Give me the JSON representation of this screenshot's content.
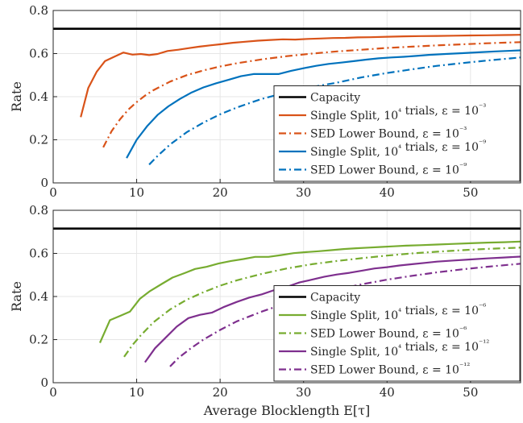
{
  "chart_data": [
    {
      "type": "line",
      "title": "",
      "xlabel": "",
      "ylabel": "Rate",
      "xlim": [
        0,
        56
      ],
      "ylim": [
        0,
        0.8
      ],
      "xticks": [
        "0",
        "10",
        "20",
        "30",
        "40",
        "50"
      ],
      "yticks": [
        "0",
        "0.2",
        "0.4",
        "0.6",
        "0.8"
      ],
      "grid": true,
      "legend_position": "lower-right",
      "series": [
        {
          "name": "Capacity",
          "color": "#000000",
          "style": "solid",
          "x": [
            0,
            56
          ],
          "y": [
            0.715,
            0.715
          ]
        },
        {
          "name": "Single Split, 10⁴ trials, ε = 10⁻³",
          "color": "#d95319",
          "style": "solid",
          "x": [
            3.3,
            4.2,
            5.2,
            6.2,
            7.3,
            8.4,
            9.5,
            10.5,
            11.5,
            12.5,
            13.7,
            15,
            16.2,
            17.5,
            18.8,
            20,
            21.5,
            23,
            24.5,
            26,
            27.5,
            29,
            30.5,
            32,
            33.5,
            35,
            36.5,
            38,
            40,
            42,
            44,
            46,
            48,
            50,
            52,
            54,
            56
          ],
          "y": [
            0.305,
            0.44,
            0.515,
            0.565,
            0.585,
            0.605,
            0.595,
            0.598,
            0.593,
            0.598,
            0.612,
            0.618,
            0.625,
            0.632,
            0.638,
            0.643,
            0.65,
            0.655,
            0.66,
            0.663,
            0.666,
            0.665,
            0.668,
            0.67,
            0.672,
            0.673,
            0.675,
            0.676,
            0.678,
            0.68,
            0.681,
            0.682,
            0.683,
            0.684,
            0.685,
            0.686,
            0.687
          ]
        },
        {
          "name": "SED Lower Bound, ε = 10⁻³",
          "color": "#d95319",
          "style": "dashdot",
          "x": [
            6,
            7,
            8,
            9,
            10,
            11,
            12,
            14,
            16,
            18,
            20,
            22,
            25,
            28,
            31,
            34,
            37,
            40,
            43,
            46,
            49,
            52,
            56
          ],
          "y": [
            0.165,
            0.24,
            0.295,
            0.34,
            0.375,
            0.405,
            0.43,
            0.47,
            0.5,
            0.522,
            0.54,
            0.555,
            0.573,
            0.588,
            0.6,
            0.61,
            0.618,
            0.626,
            0.632,
            0.638,
            0.643,
            0.648,
            0.653
          ]
        },
        {
          "name": "Single Split, 10⁴ trials, ε = 10⁻⁹",
          "color": "#0072bd",
          "style": "solid",
          "x": [
            8.8,
            10,
            11.3,
            12.5,
            13.8,
            15.2,
            16.6,
            18,
            19.5,
            21,
            22.5,
            24,
            25.5,
            27,
            28.5,
            30,
            31.5,
            33,
            34.5,
            36,
            37.5,
            39,
            40.5,
            42,
            43.5,
            45,
            47,
            49,
            51,
            53,
            56
          ],
          "y": [
            0.115,
            0.2,
            0.265,
            0.315,
            0.355,
            0.39,
            0.42,
            0.443,
            0.462,
            0.478,
            0.495,
            0.505,
            0.505,
            0.505,
            0.52,
            0.532,
            0.543,
            0.552,
            0.558,
            0.565,
            0.572,
            0.578,
            0.582,
            0.585,
            0.589,
            0.594,
            0.598,
            0.602,
            0.606,
            0.61,
            0.615
          ]
        },
        {
          "name": "SED Lower Bound, ε = 10⁻⁹",
          "color": "#0072bd",
          "style": "dashdot",
          "x": [
            11.5,
            12.5,
            14,
            16,
            18,
            20,
            22,
            25,
            28,
            31,
            34,
            37,
            40,
            43,
            46,
            49,
            52,
            56
          ],
          "y": [
            0.085,
            0.125,
            0.178,
            0.235,
            0.28,
            0.318,
            0.35,
            0.39,
            0.42,
            0.445,
            0.465,
            0.49,
            0.51,
            0.527,
            0.543,
            0.556,
            0.568,
            0.582
          ]
        }
      ],
      "legend": [
        "Capacity",
        "Single Split, 10⁴ trials, ε = 10⁻³",
        "SED Lower Bound, ε = 10⁻³",
        "Single Split, 10⁴ trials, ε = 10⁻⁹",
        "SED Lower Bound, ε = 10⁻⁹"
      ]
    },
    {
      "type": "line",
      "title": "",
      "xlabel": "Average Blocklength E[τ]",
      "ylabel": "Rate",
      "xlim": [
        0,
        56
      ],
      "ylim": [
        0,
        0.8
      ],
      "xticks": [
        "0",
        "10",
        "20",
        "30",
        "40",
        "50"
      ],
      "yticks": [
        "0",
        "0.2",
        "0.4",
        "0.6",
        "0.8"
      ],
      "grid": true,
      "legend_position": "lower-right",
      "series": [
        {
          "name": "Capacity",
          "color": "#000000",
          "style": "solid",
          "x": [
            0,
            56
          ],
          "y": [
            0.715,
            0.715
          ]
        },
        {
          "name": "Single Split, 10⁴ trials, ε = 10⁻⁶",
          "color": "#77ac30",
          "style": "solid",
          "x": [
            5.6,
            6.8,
            8,
            9.2,
            10.4,
            11.6,
            13,
            14.3,
            15.7,
            17,
            18.4,
            19.8,
            21.3,
            22.8,
            24.2,
            25.8,
            27.3,
            28.8,
            30.3,
            31.8,
            33.3,
            34.8,
            36.3,
            37.8,
            39.3,
            40.8,
            42.3,
            44,
            46,
            48,
            50,
            52,
            54,
            56
          ],
          "y": [
            0.185,
            0.29,
            0.31,
            0.33,
            0.39,
            0.425,
            0.458,
            0.488,
            0.508,
            0.528,
            0.538,
            0.553,
            0.565,
            0.574,
            0.584,
            0.584,
            0.592,
            0.601,
            0.606,
            0.61,
            0.615,
            0.62,
            0.624,
            0.627,
            0.63,
            0.633,
            0.636,
            0.638,
            0.641,
            0.644,
            0.647,
            0.65,
            0.652,
            0.655
          ]
        },
        {
          "name": "SED Lower Bound, ε = 10⁻⁶",
          "color": "#77ac30",
          "style": "dashdot",
          "x": [
            8.5,
            9.5,
            10.5,
            12,
            14,
            16,
            18,
            20,
            22,
            25,
            28,
            31,
            34,
            37,
            40,
            43,
            46,
            49,
            52,
            56
          ],
          "y": [
            0.12,
            0.175,
            0.22,
            0.28,
            0.34,
            0.385,
            0.42,
            0.45,
            0.475,
            0.505,
            0.53,
            0.55,
            0.565,
            0.578,
            0.59,
            0.6,
            0.608,
            0.615,
            0.621,
            0.627
          ]
        },
        {
          "name": "Single Split, 10⁴ trials, ε = 10⁻¹²",
          "color": "#7e2f8e",
          "style": "solid",
          "x": [
            11,
            12.2,
            13.5,
            14.8,
            16.2,
            17.6,
            19,
            20.5,
            22,
            23.5,
            25,
            26.5,
            28,
            29.5,
            31,
            32.5,
            34,
            35.5,
            37,
            38.5,
            40,
            41.5,
            43,
            44.5,
            46,
            48,
            50,
            52,
            54,
            56
          ],
          "y": [
            0.095,
            0.16,
            0.21,
            0.26,
            0.3,
            0.315,
            0.325,
            0.352,
            0.375,
            0.395,
            0.41,
            0.43,
            0.445,
            0.465,
            0.478,
            0.492,
            0.502,
            0.51,
            0.52,
            0.53,
            0.536,
            0.544,
            0.55,
            0.556,
            0.562,
            0.567,
            0.572,
            0.577,
            0.581,
            0.585
          ]
        },
        {
          "name": "SED Lower Bound, ε = 10⁻¹²",
          "color": "#7e2f8e",
          "style": "dashdot",
          "x": [
            14,
            15,
            16.5,
            18,
            20,
            22,
            25,
            28,
            31,
            34,
            37,
            40,
            43,
            46,
            49,
            52,
            56
          ],
          "y": [
            0.075,
            0.115,
            0.16,
            0.2,
            0.245,
            0.285,
            0.33,
            0.37,
            0.405,
            0.432,
            0.457,
            0.478,
            0.496,
            0.512,
            0.526,
            0.538,
            0.552
          ]
        }
      ],
      "legend": [
        "Capacity",
        "Single Split, 10⁴ trials, ε = 10⁻⁶",
        "SED Lower Bound, ε = 10⁻⁶",
        "Single Split, 10⁴ trials, ε = 10⁻¹²",
        "SED Lower Bound, ε = 10⁻¹²"
      ]
    }
  ]
}
